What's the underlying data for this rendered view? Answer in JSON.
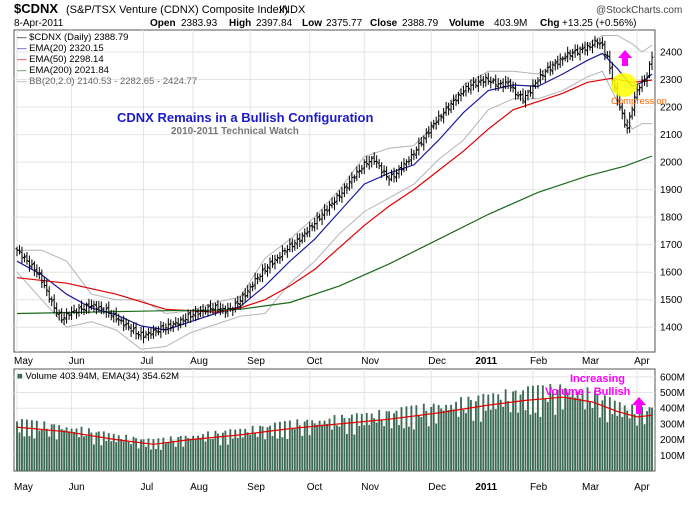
{
  "header": {
    "symbol": "$CDNX",
    "name": "(S&P/TSX Venture (CDNX) Composite Index)",
    "exchange": "INDX",
    "date": "8-Apr-2011",
    "open_label": "Open",
    "open": "2383.93",
    "high_label": "High",
    "high": "2397.84",
    "low_label": "Low",
    "low": "2375.77",
    "close_label": "Close",
    "close": "2388.79",
    "volume_label": "Volume",
    "volume": "403.9M",
    "chg_label": "Chg",
    "chg": "+13.25 (+0.56%)",
    "brand": "@StockCharts.com"
  },
  "legend": {
    "price": "$CDNX (Daily) 2388.79",
    "ema20": "EMA(20) 2320.15",
    "ema50": "EMA(50) 2298.14",
    "ema200": "EMA(200) 2021.84",
    "bb": "BB(20,2.0) 2140.53 - 2282.65 - 2424.77",
    "volume": "Volume 403.94M, EMA(34) 354.62M"
  },
  "annotations": {
    "title": "CDNX Remains in a Bullish Configuration",
    "subtitle": "2010-2011 Technical Watch",
    "compression": "Compression",
    "vol_line1": "Increasing",
    "vol_line2": "Volume - Bullish"
  },
  "colors": {
    "ema20": "#1a1aa0",
    "ema50": "#e00000",
    "ema200": "#1a6a1a",
    "bb": "#b4b4b4",
    "price": "#000000",
    "volume": "#3d6b55",
    "annotation": "#ff00ff",
    "title": "#1a1acc",
    "compression": "#ff6600",
    "highlight": "#ffff00"
  },
  "chart_data": {
    "type": "line",
    "price_axis": {
      "ylim": [
        1310,
        2480
      ],
      "ticks": [
        1400,
        1500,
        1600,
        1700,
        1800,
        1900,
        2000,
        2100,
        2200,
        2300,
        2400
      ]
    },
    "volume_axis": {
      "ylim": [
        0,
        650
      ],
      "unit": "M",
      "ticks": [
        100,
        200,
        300,
        400,
        500,
        600
      ],
      "tick_labels": [
        "100M",
        "200M",
        "300M",
        "400M",
        "500M",
        "600M"
      ]
    },
    "x_months": [
      {
        "label": "May",
        "day": 0
      },
      {
        "label": "Jun",
        "day": 22
      },
      {
        "label": "Jul",
        "day": 51
      },
      {
        "label": "Aug",
        "day": 71
      },
      {
        "label": "Sep",
        "day": 94
      },
      {
        "label": "Oct",
        "day": 118
      },
      {
        "label": "Nov",
        "day": 140
      },
      {
        "label": "Dec",
        "day": 167
      },
      {
        "label": "2011",
        "day": 186
      },
      {
        "label": "Feb",
        "day": 208
      },
      {
        "label": "Mar",
        "day": 229
      },
      {
        "label": "Apr",
        "day": 250
      }
    ],
    "total_days": 257,
    "close_points": [
      [
        0,
        1680
      ],
      [
        3,
        1650
      ],
      [
        6,
        1620
      ],
      [
        9,
        1590
      ],
      [
        12,
        1530
      ],
      [
        15,
        1470
      ],
      [
        18,
        1430
      ],
      [
        21,
        1450
      ],
      [
        24,
        1460
      ],
      [
        27,
        1470
      ],
      [
        30,
        1480
      ],
      [
        33,
        1470
      ],
      [
        36,
        1460
      ],
      [
        39,
        1440
      ],
      [
        42,
        1420
      ],
      [
        45,
        1400
      ],
      [
        48,
        1380
      ],
      [
        51,
        1370
      ],
      [
        54,
        1380
      ],
      [
        57,
        1390
      ],
      [
        60,
        1400
      ],
      [
        63,
        1410
      ],
      [
        66,
        1420
      ],
      [
        69,
        1440
      ],
      [
        72,
        1450
      ],
      [
        75,
        1460
      ],
      [
        78,
        1470
      ],
      [
        81,
        1470
      ],
      [
        84,
        1460
      ],
      [
        87,
        1470
      ],
      [
        90,
        1500
      ],
      [
        93,
        1530
      ],
      [
        96,
        1570
      ],
      [
        99,
        1600
      ],
      [
        102,
        1630
      ],
      [
        105,
        1650
      ],
      [
        108,
        1680
      ],
      [
        111,
        1700
      ],
      [
        114,
        1720
      ],
      [
        117,
        1750
      ],
      [
        120,
        1780
      ],
      [
        123,
        1810
      ],
      [
        126,
        1840
      ],
      [
        129,
        1870
      ],
      [
        132,
        1900
      ],
      [
        135,
        1940
      ],
      [
        138,
        1970
      ],
      [
        141,
        2000
      ],
      [
        144,
        2010
      ],
      [
        147,
        1970
      ],
      [
        150,
        1940
      ],
      [
        153,
        1960
      ],
      [
        156,
        1990
      ],
      [
        159,
        2020
      ],
      [
        162,
        2060
      ],
      [
        165,
        2100
      ],
      [
        168,
        2140
      ],
      [
        171,
        2170
      ],
      [
        174,
        2200
      ],
      [
        177,
        2230
      ],
      [
        180,
        2260
      ],
      [
        183,
        2280
      ],
      [
        186,
        2290
      ],
      [
        189,
        2300
      ],
      [
        192,
        2290
      ],
      [
        195,
        2280
      ],
      [
        198,
        2290
      ],
      [
        201,
        2250
      ],
      [
        204,
        2230
      ],
      [
        207,
        2260
      ],
      [
        210,
        2300
      ],
      [
        213,
        2330
      ],
      [
        216,
        2350
      ],
      [
        219,
        2370
      ],
      [
        222,
        2390
      ],
      [
        225,
        2400
      ],
      [
        228,
        2410
      ],
      [
        231,
        2420
      ],
      [
        234,
        2440
      ],
      [
        236,
        2420
      ],
      [
        238,
        2380
      ],
      [
        240,
        2300
      ],
      [
        242,
        2230
      ],
      [
        244,
        2170
      ],
      [
        246,
        2120
      ],
      [
        248,
        2200
      ],
      [
        250,
        2260
      ],
      [
        252,
        2290
      ],
      [
        254,
        2310
      ],
      [
        256,
        2389
      ]
    ],
    "series": [
      {
        "name": "EMA(20)",
        "values": [
          [
            0,
            1640
          ],
          [
            10,
            1590
          ],
          [
            20,
            1520
          ],
          [
            30,
            1470
          ],
          [
            40,
            1445
          ],
          [
            50,
            1405
          ],
          [
            60,
            1390
          ],
          [
            70,
            1420
          ],
          [
            80,
            1450
          ],
          [
            90,
            1475
          ],
          [
            100,
            1550
          ],
          [
            110,
            1640
          ],
          [
            120,
            1720
          ],
          [
            130,
            1820
          ],
          [
            140,
            1920
          ],
          [
            150,
            1960
          ],
          [
            160,
            1990
          ],
          [
            170,
            2080
          ],
          [
            180,
            2180
          ],
          [
            190,
            2260
          ],
          [
            200,
            2280
          ],
          [
            210,
            2275
          ],
          [
            220,
            2320
          ],
          [
            230,
            2370
          ],
          [
            236,
            2395
          ],
          [
            242,
            2340
          ],
          [
            248,
            2275
          ],
          [
            252,
            2290
          ],
          [
            256,
            2320
          ]
        ]
      },
      {
        "name": "EMA(50)",
        "values": [
          [
            0,
            1580
          ],
          [
            20,
            1560
          ],
          [
            40,
            1520
          ],
          [
            60,
            1465
          ],
          [
            80,
            1455
          ],
          [
            90,
            1470
          ],
          [
            100,
            1500
          ],
          [
            110,
            1550
          ],
          [
            120,
            1610
          ],
          [
            130,
            1690
          ],
          [
            140,
            1770
          ],
          [
            150,
            1840
          ],
          [
            160,
            1900
          ],
          [
            170,
            1970
          ],
          [
            180,
            2040
          ],
          [
            190,
            2120
          ],
          [
            200,
            2190
          ],
          [
            210,
            2220
          ],
          [
            220,
            2250
          ],
          [
            230,
            2290
          ],
          [
            240,
            2305
          ],
          [
            248,
            2290
          ],
          [
            256,
            2298
          ]
        ]
      },
      {
        "name": "EMA(200)",
        "values": [
          [
            0,
            1450
          ],
          [
            30,
            1455
          ],
          [
            60,
            1460
          ],
          [
            80,
            1462
          ],
          [
            90,
            1465
          ],
          [
            110,
            1490
          ],
          [
            130,
            1550
          ],
          [
            150,
            1630
          ],
          [
            170,
            1720
          ],
          [
            190,
            1810
          ],
          [
            210,
            1890
          ],
          [
            230,
            1950
          ],
          [
            245,
            1985
          ],
          [
            256,
            2022
          ]
        ]
      }
    ],
    "bollinger_upper": [
      [
        0,
        1680
      ],
      [
        10,
        1680
      ],
      [
        20,
        1640
      ],
      [
        30,
        1520
      ],
      [
        40,
        1500
      ],
      [
        50,
        1500
      ],
      [
        60,
        1450
      ],
      [
        70,
        1460
      ],
      [
        80,
        1490
      ],
      [
        90,
        1510
      ],
      [
        100,
        1650
      ],
      [
        110,
        1720
      ],
      [
        120,
        1800
      ],
      [
        130,
        1900
      ],
      [
        140,
        2020
      ],
      [
        150,
        2050
      ],
      [
        160,
        2060
      ],
      [
        170,
        2150
      ],
      [
        180,
        2280
      ],
      [
        190,
        2330
      ],
      [
        200,
        2330
      ],
      [
        210,
        2320
      ],
      [
        220,
        2380
      ],
      [
        230,
        2430
      ],
      [
        236,
        2460
      ],
      [
        242,
        2460
      ],
      [
        248,
        2430
      ],
      [
        252,
        2400
      ],
      [
        256,
        2425
      ]
    ],
    "bollinger_lower": [
      [
        0,
        1600
      ],
      [
        10,
        1500
      ],
      [
        20,
        1400
      ],
      [
        30,
        1420
      ],
      [
        40,
        1390
      ],
      [
        50,
        1320
      ],
      [
        60,
        1330
      ],
      [
        70,
        1380
      ],
      [
        80,
        1410
      ],
      [
        90,
        1440
      ],
      [
        100,
        1450
      ],
      [
        110,
        1560
      ],
      [
        120,
        1640
      ],
      [
        130,
        1740
      ],
      [
        140,
        1820
      ],
      [
        150,
        1870
      ],
      [
        160,
        1920
      ],
      [
        170,
        2010
      ],
      [
        180,
        2080
      ],
      [
        190,
        2190
      ],
      [
        200,
        2230
      ],
      [
        210,
        2230
      ],
      [
        220,
        2260
      ],
      [
        230,
        2310
      ],
      [
        236,
        2330
      ],
      [
        242,
        2220
      ],
      [
        248,
        2120
      ],
      [
        252,
        2140
      ],
      [
        256,
        2140
      ]
    ],
    "volume_ema34": [
      [
        0,
        280
      ],
      [
        20,
        250
      ],
      [
        40,
        200
      ],
      [
        55,
        170
      ],
      [
        70,
        200
      ],
      [
        90,
        230
      ],
      [
        110,
        270
      ],
      [
        130,
        300
      ],
      [
        150,
        330
      ],
      [
        170,
        370
      ],
      [
        190,
        420
      ],
      [
        205,
        450
      ],
      [
        220,
        470
      ],
      [
        232,
        440
      ],
      [
        242,
        380
      ],
      [
        250,
        345
      ],
      [
        256,
        355
      ]
    ],
    "volume_last": 404
  }
}
